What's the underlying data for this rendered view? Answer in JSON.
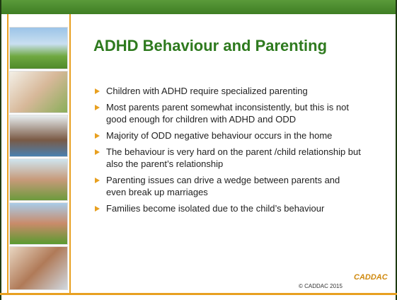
{
  "slide": {
    "title": "ADHD Behaviour and Parenting",
    "bullets": [
      "Children with ADHD require specialized parenting",
      "Most parents parent somewhat inconsistently, but this is not good enough for children with ADHD and ODD",
      "Majority of ODD negative behaviour occurs in the home",
      "The behaviour is very hard on the parent /child relationship but also the parent’s relationship",
      "Parenting issues can drive a wedge between parents and even break up marriages",
      "Families become isolated due to the child’s behaviour"
    ],
    "footer": "© CADDAC 2015",
    "logo": "CADDAC"
  }
}
